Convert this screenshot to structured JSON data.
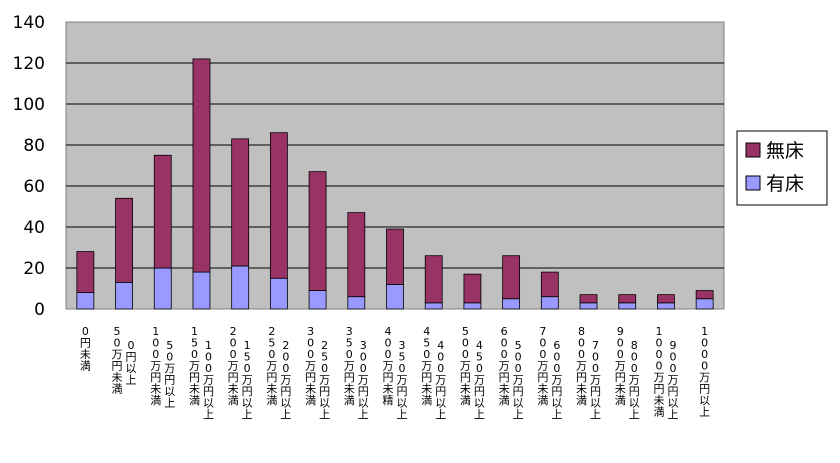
{
  "chart_data": {
    "type": "bar",
    "stacked": true,
    "categories": [
      "0円未満",
      "50万円未満|0円以上",
      "100万円未満|50万円以上",
      "150万円未満|100万円以上",
      "200万円未満|150万円以上",
      "250万円未満|200万円以上",
      "300万円未満|250万円以上",
      "350万円未満|300万円以上",
      "400万円未精|350万円以上",
      "450万円未満|400万円以上",
      "500万円未満|450万円以上",
      "600万円未満|500万円以上",
      "700万円未満|600万円以上",
      "800万円未満|700万円以上",
      "900万円未満|800万円以上",
      "1000万円未満|900万円以上",
      "1000万円以上"
    ],
    "series": [
      {
        "name": "有床",
        "color": "#9999ff",
        "values": [
          8,
          13,
          20,
          18,
          21,
          15,
          9,
          6,
          12,
          3,
          3,
          5,
          6,
          3,
          3,
          3,
          5
        ]
      },
      {
        "name": "無床",
        "color": "#993366",
        "values": [
          20,
          41,
          55,
          104,
          62,
          71,
          58,
          41,
          27,
          23,
          14,
          21,
          12,
          4,
          4,
          4,
          4
        ]
      }
    ],
    "legend_order": [
      "無床",
      "有床"
    ],
    "ylim": [
      0,
      140
    ],
    "yticks": [
      0,
      20,
      40,
      60,
      80,
      100,
      120,
      140
    ],
    "grid": true,
    "plot_background": "#c0c0c0",
    "legend_position": "right",
    "title": "",
    "xlabel": "",
    "ylabel": ""
  }
}
